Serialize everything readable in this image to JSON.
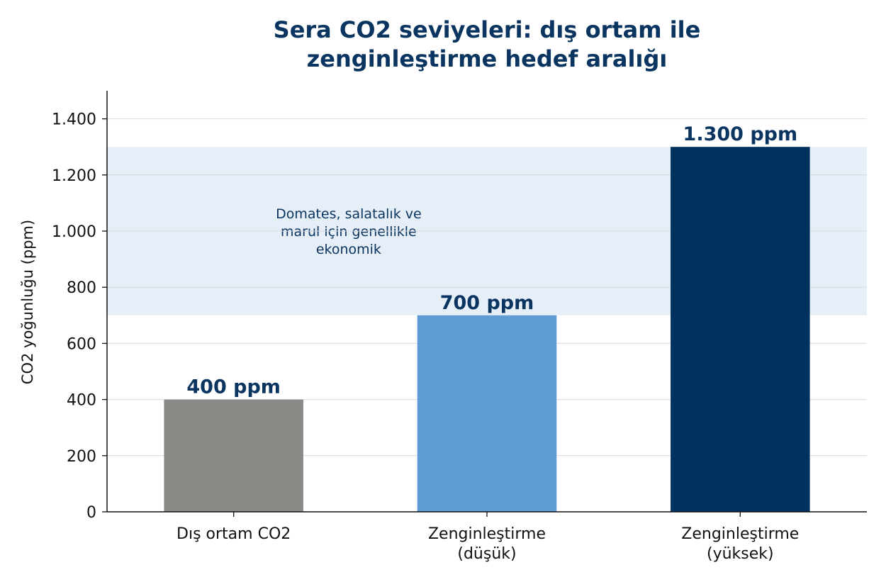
{
  "chart_data": {
    "type": "bar",
    "title_lines": [
      "Sera CO2 seviyeleri: dış ortam ile",
      "zenginleştirme hedef aralığı"
    ],
    "ylabel": "CO2 yoğunluğu (ppm)",
    "xlabel": "",
    "ylim": [
      0,
      1500
    ],
    "yticks": [
      0,
      200,
      400,
      600,
      800,
      1000,
      1200,
      1400
    ],
    "ytick_labels": [
      "0",
      "200",
      "400",
      "600",
      "800",
      "1.000",
      "1.200",
      "1.400"
    ],
    "grid": "horizontal",
    "categories": [
      [
        "Dış ortam CO2"
      ],
      [
        "Zenginleştirme",
        "(düşük)"
      ],
      [
        "Zenginleştirme",
        "(yüksek)"
      ]
    ],
    "values": [
      400,
      700,
      1300
    ],
    "value_labels": [
      "400 ppm",
      "700 ppm",
      "1.300 ppm"
    ],
    "colors": [
      "#8a8a86",
      "#5f9bd5",
      "#003260"
    ],
    "band": {
      "from": 700,
      "to": 1300,
      "color": "#dbe7f4",
      "label_lines": [
        "Domates, salatalık ve",
        "marul için genellikle",
        "ekonomik"
      ]
    }
  }
}
